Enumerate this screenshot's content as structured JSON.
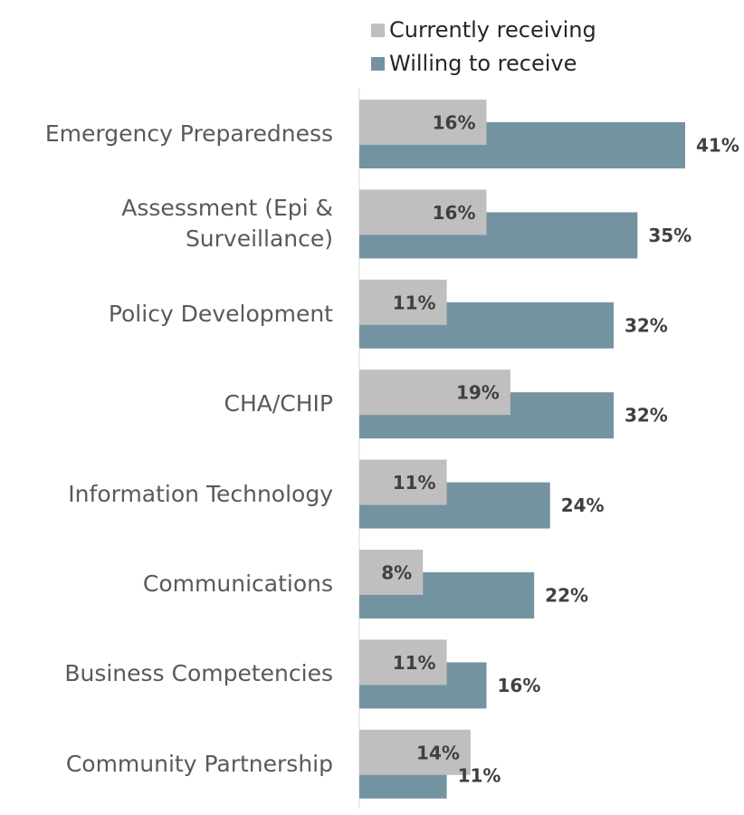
{
  "chart_data": {
    "type": "bar",
    "orientation": "horizontal",
    "categories": [
      "Emergency Preparedness",
      "Assessment (Epi & Surveillance)",
      "Policy Development",
      "CHA/CHIP",
      "Information Technology",
      "Communications",
      "Business Competencies",
      "Community Partnership"
    ],
    "series": [
      {
        "name": "Currently receiving",
        "color": "#bfbfbf",
        "values": [
          16,
          16,
          11,
          19,
          11,
          8,
          11,
          14
        ],
        "value_labels": [
          "16%",
          "16%",
          "11%",
          "19%",
          "11%",
          "8%",
          "11%",
          "14%"
        ]
      },
      {
        "name": "Willing to receive",
        "color": "#7393a1",
        "values": [
          41,
          35,
          32,
          32,
          24,
          22,
          16,
          11
        ],
        "value_labels": [
          "41%",
          "35%",
          "32%",
          "32%",
          "24%",
          "22%",
          "16%",
          "11%"
        ]
      }
    ]
  }
}
